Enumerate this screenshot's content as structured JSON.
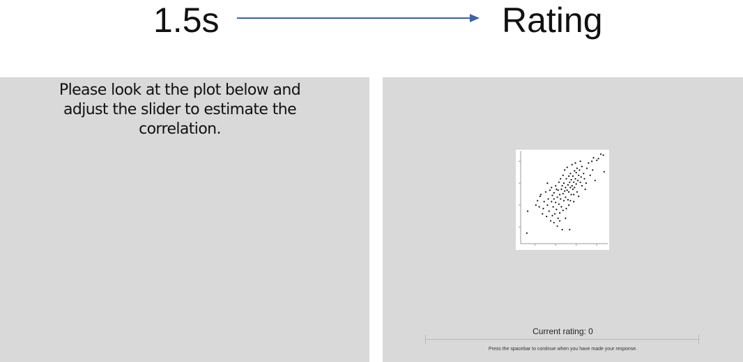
{
  "header": {
    "left_label": "1.5s",
    "right_label": "Rating",
    "arrow_color": "#3a63a7"
  },
  "instruction_panel": {
    "text": "Please look at the plot below and adjust the slider to estimate the correlation."
  },
  "rating_panel": {
    "current_rating_text": "Current rating: 0",
    "continue_text": "Press the spacebar to continue when you have made your response."
  },
  "chart_data": {
    "type": "scatter",
    "title": "",
    "xlabel": "",
    "ylabel": "",
    "xlim": [
      0,
      1
    ],
    "ylim": [
      0,
      1
    ],
    "grid": false,
    "points": [
      [
        0.05,
        0.08
      ],
      [
        0.06,
        0.33
      ],
      [
        0.16,
        0.4
      ],
      [
        0.18,
        0.45
      ],
      [
        0.2,
        0.38
      ],
      [
        0.21,
        0.5
      ],
      [
        0.22,
        0.52
      ],
      [
        0.24,
        0.3
      ],
      [
        0.25,
        0.36
      ],
      [
        0.26,
        0.44
      ],
      [
        0.28,
        0.55
      ],
      [
        0.29,
        0.27
      ],
      [
        0.3,
        0.4
      ],
      [
        0.31,
        0.47
      ],
      [
        0.32,
        0.33
      ],
      [
        0.33,
        0.57
      ],
      [
        0.34,
        0.22
      ],
      [
        0.35,
        0.44
      ],
      [
        0.35,
        0.6
      ],
      [
        0.36,
        0.51
      ],
      [
        0.37,
        0.38
      ],
      [
        0.38,
        0.47
      ],
      [
        0.38,
        0.54
      ],
      [
        0.39,
        0.3
      ],
      [
        0.4,
        0.62
      ],
      [
        0.4,
        0.43
      ],
      [
        0.41,
        0.35
      ],
      [
        0.42,
        0.16
      ],
      [
        0.42,
        0.49
      ],
      [
        0.43,
        0.25
      ],
      [
        0.43,
        0.57
      ],
      [
        0.44,
        0.66
      ],
      [
        0.44,
        0.41
      ],
      [
        0.45,
        0.52
      ],
      [
        0.45,
        0.31
      ],
      [
        0.46,
        0.7
      ],
      [
        0.46,
        0.47
      ],
      [
        0.47,
        0.58
      ],
      [
        0.47,
        0.38
      ],
      [
        0.48,
        0.62
      ],
      [
        0.48,
        0.12
      ],
      [
        0.49,
        0.53
      ],
      [
        0.49,
        0.74
      ],
      [
        0.5,
        0.45
      ],
      [
        0.5,
        0.65
      ],
      [
        0.51,
        0.56
      ],
      [
        0.51,
        0.8
      ],
      [
        0.52,
        0.49
      ],
      [
        0.52,
        0.6
      ],
      [
        0.53,
        0.7
      ],
      [
        0.53,
        0.36
      ],
      [
        0.54,
        0.57
      ],
      [
        0.54,
        0.83
      ],
      [
        0.55,
        0.63
      ],
      [
        0.55,
        0.46
      ],
      [
        0.56,
        0.73
      ],
      [
        0.56,
        0.55
      ],
      [
        0.57,
        0.66
      ],
      [
        0.57,
        0.12
      ],
      [
        0.58,
        0.6
      ],
      [
        0.58,
        0.76
      ],
      [
        0.59,
        0.52
      ],
      [
        0.59,
        0.69
      ],
      [
        0.6,
        0.62
      ],
      [
        0.6,
        0.86
      ],
      [
        0.61,
        0.58
      ],
      [
        0.61,
        0.73
      ],
      [
        0.62,
        0.66
      ],
      [
        0.62,
        0.44
      ],
      [
        0.63,
        0.79
      ],
      [
        0.63,
        0.6
      ],
      [
        0.64,
        0.7
      ],
      [
        0.64,
        0.88
      ],
      [
        0.65,
        0.64
      ],
      [
        0.65,
        0.77
      ],
      [
        0.66,
        0.55
      ],
      [
        0.66,
        0.82
      ],
      [
        0.67,
        0.68
      ],
      [
        0.68,
        0.74
      ],
      [
        0.68,
        0.5
      ],
      [
        0.69,
        0.8
      ],
      [
        0.7,
        0.66
      ],
      [
        0.7,
        0.9
      ],
      [
        0.71,
        0.72
      ],
      [
        0.72,
        0.62
      ],
      [
        0.72,
        0.84
      ],
      [
        0.74,
        0.76
      ],
      [
        0.75,
        0.7
      ],
      [
        0.76,
        0.58
      ],
      [
        0.77,
        0.65
      ],
      [
        0.78,
        0.82
      ],
      [
        0.8,
        0.88
      ],
      [
        0.82,
        0.74
      ],
      [
        0.84,
        0.9
      ],
      [
        0.85,
        0.8
      ],
      [
        0.86,
        0.94
      ],
      [
        0.88,
        0.68
      ],
      [
        0.9,
        0.91
      ],
      [
        0.92,
        0.93
      ],
      [
        0.95,
        0.98
      ],
      [
        0.98,
        0.97
      ],
      [
        0.99,
        0.78
      ],
      [
        0.3,
        0.65
      ],
      [
        0.38,
        0.2
      ],
      [
        0.52,
        0.25
      ],
      [
        0.36,
        0.28
      ],
      [
        0.45,
        0.22
      ],
      [
        0.58,
        0.45
      ],
      [
        0.49,
        0.34
      ],
      [
        0.41,
        0.58
      ],
      [
        0.56,
        0.4
      ],
      [
        0.62,
        0.52
      ]
    ]
  }
}
